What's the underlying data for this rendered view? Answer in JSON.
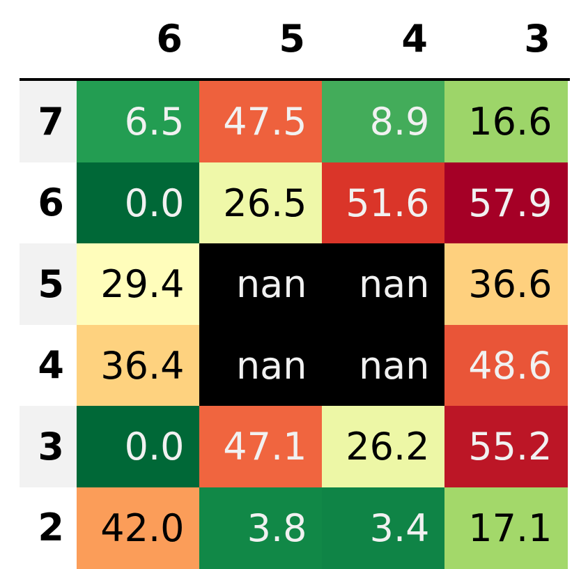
{
  "chart_data": {
    "type": "heatmap",
    "colormap": "RdYlGn_r",
    "vmin": 0.0,
    "vmax": 57.9,
    "nan_color": "#000000",
    "light_text_color": "#f1f1f1",
    "dark_text_color": "#000000",
    "columns": [
      "6",
      "5",
      "4",
      "3"
    ],
    "rows": [
      "7",
      "6",
      "5",
      "4",
      "3",
      "2"
    ],
    "values": [
      [
        6.5,
        47.5,
        8.9,
        16.6
      ],
      [
        0.0,
        26.5,
        51.6,
        57.9
      ],
      [
        29.4,
        null,
        null,
        36.6
      ],
      [
        36.4,
        null,
        null,
        48.6
      ],
      [
        0.0,
        47.1,
        26.2,
        55.2
      ],
      [
        42.0,
        3.8,
        3.4,
        17.1
      ]
    ],
    "labels": [
      [
        "6.5",
        "47.5",
        "8.9",
        "16.6"
      ],
      [
        "0.0",
        "26.5",
        "51.6",
        "57.9"
      ],
      [
        "29.4",
        "nan",
        "nan",
        "36.6"
      ],
      [
        "36.4",
        "nan",
        "nan",
        "48.6"
      ],
      [
        "0.0",
        "47.1",
        "26.2",
        "55.2"
      ],
      [
        "42.0",
        "3.8",
        "3.4",
        "17.1"
      ]
    ]
  }
}
